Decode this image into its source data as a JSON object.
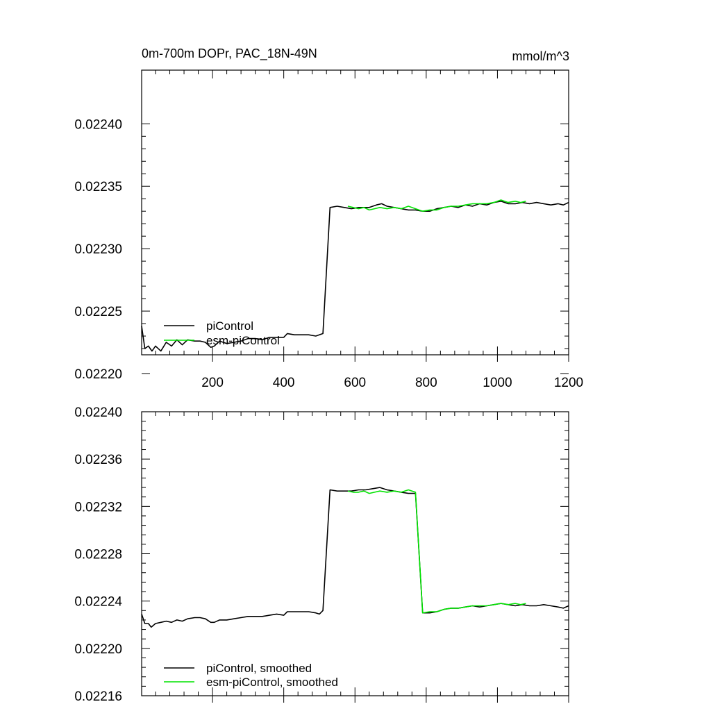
{
  "chart_data": [
    {
      "type": "line",
      "title": "0m-700m DOPr, PAC_18N-49N",
      "units": "mmol/m^3",
      "xlim": [
        1,
        1200
      ],
      "ylim": [
        0.022215,
        0.022443
      ],
      "x_ticks": [
        200,
        400,
        600,
        800,
        1000,
        1200
      ],
      "y_ticks": [
        0.0222,
        0.02225,
        0.0223,
        0.02235,
        0.0224
      ],
      "y_tick_labels": [
        "0.02220",
        "0.02225",
        "0.02230",
        "0.02235",
        "0.02240"
      ],
      "grid": false,
      "legend_position": "bottom-left",
      "series": [
        {
          "name": "piControl",
          "color": "#000000",
          "points": [
            [
              1,
              0.022238
            ],
            [
              10,
              0.02222
            ],
            [
              20,
              0.022222
            ],
            [
              30,
              0.022218
            ],
            [
              40,
              0.022222
            ],
            [
              55,
              0.022218
            ],
            [
              70,
              0.022225
            ],
            [
              85,
              0.022222
            ],
            [
              100,
              0.022227
            ],
            [
              115,
              0.022223
            ],
            [
              130,
              0.022227
            ],
            [
              150,
              0.022226
            ],
            [
              165,
              0.022226
            ],
            [
              180,
              0.022225
            ],
            [
              195,
              0.022221
            ],
            [
              205,
              0.022222
            ],
            [
              220,
              0.022226
            ],
            [
              240,
              0.022224
            ],
            [
              260,
              0.022225
            ],
            [
              280,
              0.022226
            ],
            [
              300,
              0.022228
            ],
            [
              320,
              0.022228
            ],
            [
              340,
              0.022227
            ],
            [
              360,
              0.022229
            ],
            [
              380,
              0.022229
            ],
            [
              400,
              0.022229
            ],
            [
              410,
              0.022232
            ],
            [
              430,
              0.022231
            ],
            [
              450,
              0.022231
            ],
            [
              470,
              0.022231
            ],
            [
              490,
              0.02223
            ],
            [
              510,
              0.022232
            ],
            [
              530,
              0.022333
            ],
            [
              550,
              0.022334
            ],
            [
              570,
              0.022333
            ],
            [
              590,
              0.022332
            ],
            [
              610,
              0.022333
            ],
            [
              640,
              0.022333
            ],
            [
              660,
              0.022335
            ],
            [
              675,
              0.022336
            ],
            [
              690,
              0.022334
            ],
            [
              710,
              0.022333
            ],
            [
              730,
              0.022332
            ],
            [
              750,
              0.022331
            ],
            [
              770,
              0.022331
            ],
            [
              790,
              0.02233
            ],
            [
              810,
              0.02233
            ],
            [
              830,
              0.022332
            ],
            [
              850,
              0.022333
            ],
            [
              870,
              0.022334
            ],
            [
              890,
              0.022333
            ],
            [
              910,
              0.022335
            ],
            [
              930,
              0.022334
            ],
            [
              950,
              0.022336
            ],
            [
              970,
              0.022335
            ],
            [
              990,
              0.022337
            ],
            [
              1010,
              0.022338
            ],
            [
              1030,
              0.022336
            ],
            [
              1050,
              0.022336
            ],
            [
              1070,
              0.022337
            ],
            [
              1090,
              0.022336
            ],
            [
              1110,
              0.022337
            ],
            [
              1130,
              0.022336
            ],
            [
              1150,
              0.022335
            ],
            [
              1170,
              0.022336
            ],
            [
              1185,
              0.022335
            ],
            [
              1200,
              0.022337
            ]
          ]
        },
        {
          "name": "esm-piControl",
          "color": "#00e400",
          "points": [
            [
              580,
              0.022334
            ],
            [
              595,
              0.022333
            ],
            [
              610,
              0.022332
            ],
            [
              625,
              0.022333
            ],
            [
              640,
              0.022331
            ],
            [
              655,
              0.022332
            ],
            [
              670,
              0.022333
            ],
            [
              690,
              0.022332
            ],
            [
              710,
              0.022333
            ],
            [
              730,
              0.022332
            ],
            [
              750,
              0.022334
            ],
            [
              770,
              0.022332
            ],
            [
              790,
              0.02233
            ],
            [
              810,
              0.022331
            ],
            [
              830,
              0.022331
            ],
            [
              850,
              0.022333
            ],
            [
              870,
              0.022334
            ],
            [
              890,
              0.022334
            ],
            [
              910,
              0.022335
            ],
            [
              930,
              0.022336
            ],
            [
              950,
              0.022336
            ],
            [
              970,
              0.022336
            ],
            [
              990,
              0.022337
            ],
            [
              1010,
              0.022339
            ],
            [
              1030,
              0.022337
            ],
            [
              1050,
              0.022338
            ],
            [
              1065,
              0.022337
            ],
            [
              1080,
              0.022338
            ]
          ]
        }
      ]
    },
    {
      "type": "line",
      "xlim": [
        1,
        1200
      ],
      "ylim": [
        0.02216,
        0.0224
      ],
      "y_ticks": [
        0.02216,
        0.0222,
        0.02224,
        0.02228,
        0.02232,
        0.02236,
        0.0224
      ],
      "y_tick_labels": [
        "0.02216",
        "0.02220",
        "0.02224",
        "0.02228",
        "0.02232",
        "0.02236",
        "0.02240"
      ],
      "grid": false,
      "legend_position": "bottom-left",
      "series": [
        {
          "name": "piControl, smoothed",
          "color": "#000000",
          "points": [
            [
              1,
              0.022229
            ],
            [
              10,
              0.022221
            ],
            [
              20,
              0.022221
            ],
            [
              28,
              0.022218
            ],
            [
              40,
              0.022221
            ],
            [
              55,
              0.022222
            ],
            [
              70,
              0.022223
            ],
            [
              85,
              0.022222
            ],
            [
              100,
              0.022224
            ],
            [
              115,
              0.022223
            ],
            [
              130,
              0.022225
            ],
            [
              150,
              0.022226
            ],
            [
              165,
              0.022226
            ],
            [
              180,
              0.022225
            ],
            [
              195,
              0.022222
            ],
            [
              205,
              0.022222
            ],
            [
              220,
              0.022224
            ],
            [
              240,
              0.022224
            ],
            [
              260,
              0.022225
            ],
            [
              280,
              0.022226
            ],
            [
              300,
              0.022227
            ],
            [
              320,
              0.022227
            ],
            [
              340,
              0.022227
            ],
            [
              360,
              0.022228
            ],
            [
              380,
              0.022229
            ],
            [
              400,
              0.022228
            ],
            [
              410,
              0.022231
            ],
            [
              430,
              0.022231
            ],
            [
              450,
              0.022231
            ],
            [
              470,
              0.022231
            ],
            [
              490,
              0.02223
            ],
            [
              500,
              0.022229
            ],
            [
              510,
              0.022232
            ],
            [
              530,
              0.022334
            ],
            [
              550,
              0.022333
            ],
            [
              570,
              0.022333
            ],
            [
              590,
              0.022333
            ],
            [
              610,
              0.022334
            ],
            [
              630,
              0.022334
            ],
            [
              650,
              0.022335
            ],
            [
              670,
              0.022336
            ],
            [
              690,
              0.022334
            ],
            [
              710,
              0.022333
            ],
            [
              730,
              0.022332
            ],
            [
              750,
              0.022331
            ],
            [
              770,
              0.022331
            ],
            [
              790,
              0.02223
            ],
            [
              810,
              0.02223
            ],
            [
              830,
              0.022231
            ],
            [
              850,
              0.022233
            ],
            [
              870,
              0.022234
            ],
            [
              890,
              0.022234
            ],
            [
              910,
              0.022235
            ],
            [
              930,
              0.022236
            ],
            [
              950,
              0.022235
            ],
            [
              970,
              0.022236
            ],
            [
              990,
              0.022237
            ],
            [
              1010,
              0.022238
            ],
            [
              1030,
              0.022237
            ],
            [
              1050,
              0.022236
            ],
            [
              1070,
              0.022237
            ],
            [
              1090,
              0.022236
            ],
            [
              1110,
              0.022236
            ],
            [
              1130,
              0.022237
            ],
            [
              1150,
              0.022236
            ],
            [
              1170,
              0.022235
            ],
            [
              1185,
              0.022234
            ],
            [
              1200,
              0.022236
            ]
          ]
        },
        {
          "name": "esm-piControl, smoothed",
          "color": "#00e400",
          "points": [
            [
              580,
              0.022333
            ],
            [
              595,
              0.022332
            ],
            [
              610,
              0.022332
            ],
            [
              625,
              0.022333
            ],
            [
              640,
              0.022331
            ],
            [
              655,
              0.022332
            ],
            [
              670,
              0.022333
            ],
            [
              690,
              0.022332
            ],
            [
              710,
              0.022333
            ],
            [
              730,
              0.022332
            ],
            [
              750,
              0.022334
            ],
            [
              770,
              0.022332
            ],
            [
              790,
              0.02223
            ],
            [
              810,
              0.022231
            ],
            [
              830,
              0.022231
            ],
            [
              850,
              0.022233
            ],
            [
              870,
              0.022234
            ],
            [
              890,
              0.022234
            ],
            [
              910,
              0.022235
            ],
            [
              930,
              0.022236
            ],
            [
              950,
              0.022236
            ],
            [
              970,
              0.022236
            ],
            [
              990,
              0.022237
            ],
            [
              1010,
              0.022238
            ],
            [
              1030,
              0.022237
            ],
            [
              1050,
              0.022238
            ],
            [
              1065,
              0.022237
            ],
            [
              1080,
              0.022238
            ]
          ]
        }
      ]
    }
  ]
}
